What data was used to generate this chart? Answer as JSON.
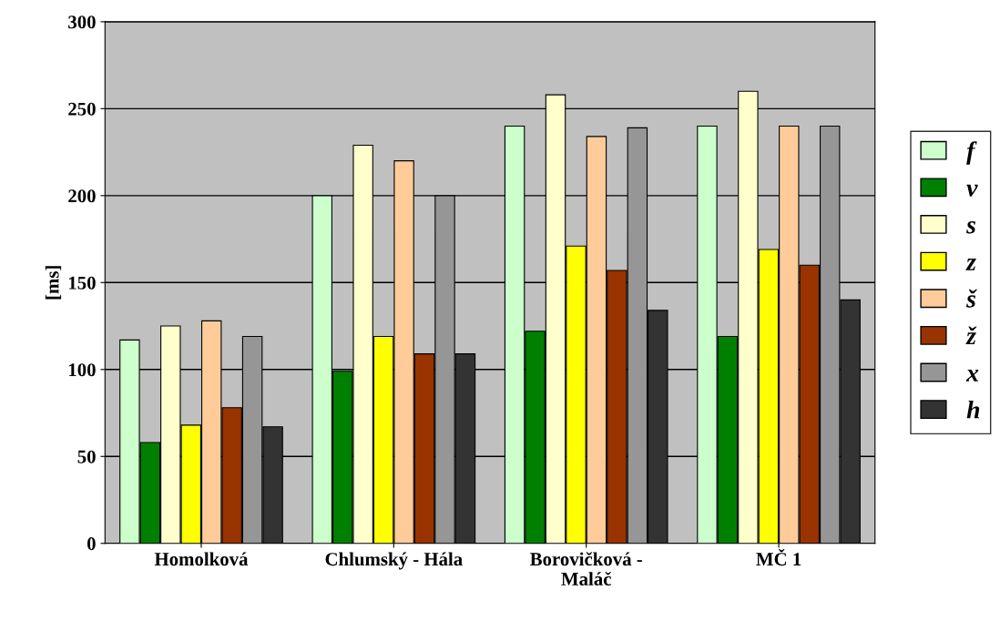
{
  "chart_data": {
    "type": "bar",
    "ylabel": "[ms]",
    "categories": [
      "Homolková",
      "Chlumský - Hála",
      "Borovičková -\nMaláč",
      "MČ 1"
    ],
    "ylim": [
      0,
      300
    ],
    "yticks": [
      0,
      50,
      100,
      150,
      200,
      250,
      300
    ],
    "grid": "y",
    "legend": "right",
    "series": [
      {
        "name": "f",
        "color": "#ccffcc",
        "values": [
          117,
          200,
          240,
          240
        ]
      },
      {
        "name": "v",
        "color": "#008000",
        "values": [
          58,
          99,
          122,
          119
        ]
      },
      {
        "name": "s",
        "color": "#ffffcc",
        "values": [
          125,
          229,
          258,
          260
        ]
      },
      {
        "name": "z",
        "color": "#ffff00",
        "values": [
          68,
          119,
          171,
          169
        ]
      },
      {
        "name": "š",
        "color": "#ffcc99",
        "values": [
          128,
          220,
          234,
          240
        ]
      },
      {
        "name": "ž",
        "color": "#993300",
        "values": [
          78,
          109,
          157,
          160
        ]
      },
      {
        "name": "x",
        "color": "#969696",
        "values": [
          119,
          200,
          239,
          240
        ]
      },
      {
        "name": "h",
        "color": "#333333",
        "values": [
          67,
          109,
          134,
          140
        ]
      }
    ]
  }
}
